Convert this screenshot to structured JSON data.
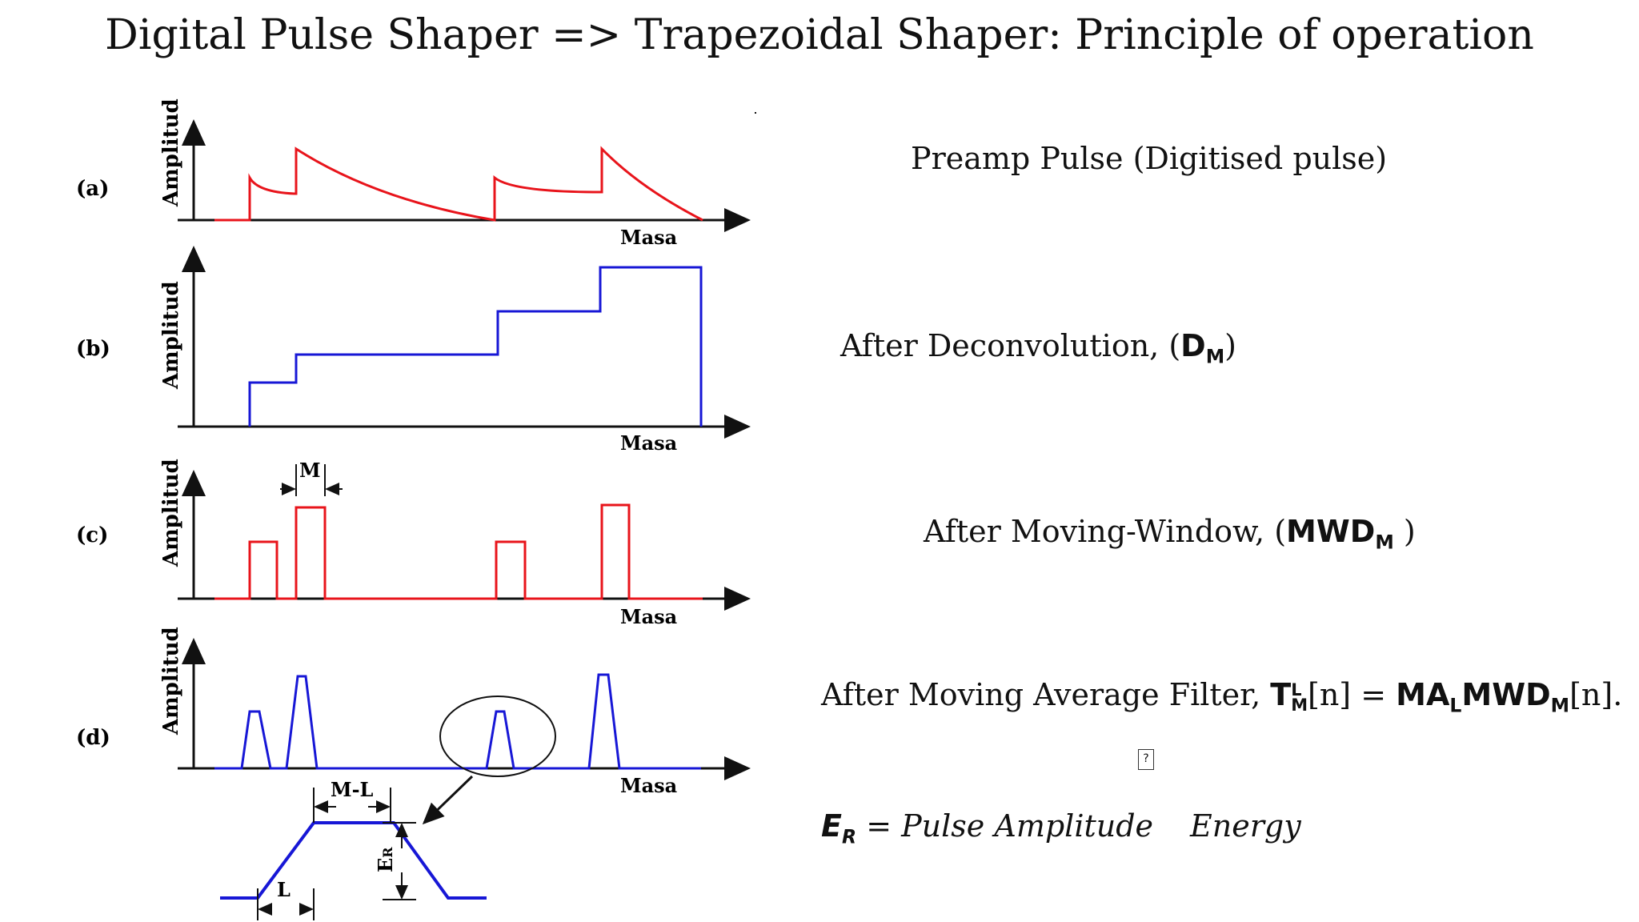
{
  "title": "Digital Pulse Shaper => Trapezoidal Shaper: Principle of operation",
  "colors": {
    "red": "#e8141b",
    "blue": "#1717d6",
    "axis": "#111111"
  },
  "panels": [
    {
      "id": "a",
      "label": "(a)",
      "ylabel": "Amplitud",
      "xlabel": "Masa",
      "desc": "Preamp Pulse (Digitised pulse)"
    },
    {
      "id": "b",
      "label": "(b)",
      "ylabel": "Amplitud",
      "xlabel": "Masa",
      "desc_prefix": "After Deconvolution, (",
      "desc_sym": "D",
      "desc_sub": "M",
      "desc_suffix": ")"
    },
    {
      "id": "c",
      "label": "(c)",
      "ylabel": "Amplitud",
      "xlabel": "Masa",
      "desc_prefix": "After Moving-Window, (",
      "desc_sym": "MWD",
      "desc_sub": "M",
      "desc_suffix": " )",
      "dim": "M"
    },
    {
      "id": "d",
      "label": "(d)",
      "ylabel": "Amplitud",
      "xlabel": "Masa",
      "desc_prefix": "After Moving Average Filter, "
    }
  ],
  "equation": {
    "T": "T",
    "T_sup": "L",
    "T_sub": "M",
    "n1": "[n]",
    "eq": " = ",
    "MA": "MA",
    "MA_sub": "L",
    "MWD": "MWD",
    "MWD_sub": "M",
    "n2": "[n].",
    "placeholder": "?"
  },
  "energy": {
    "E": "E",
    "E_sub": "R",
    "eq": " = ",
    "text": "Pulse Amplitude",
    "text2": "Energy"
  },
  "trapezoid": {
    "ML_label": "M-L",
    "L_label": "L",
    "ER_label": "E",
    "ER_sub": "R"
  }
}
